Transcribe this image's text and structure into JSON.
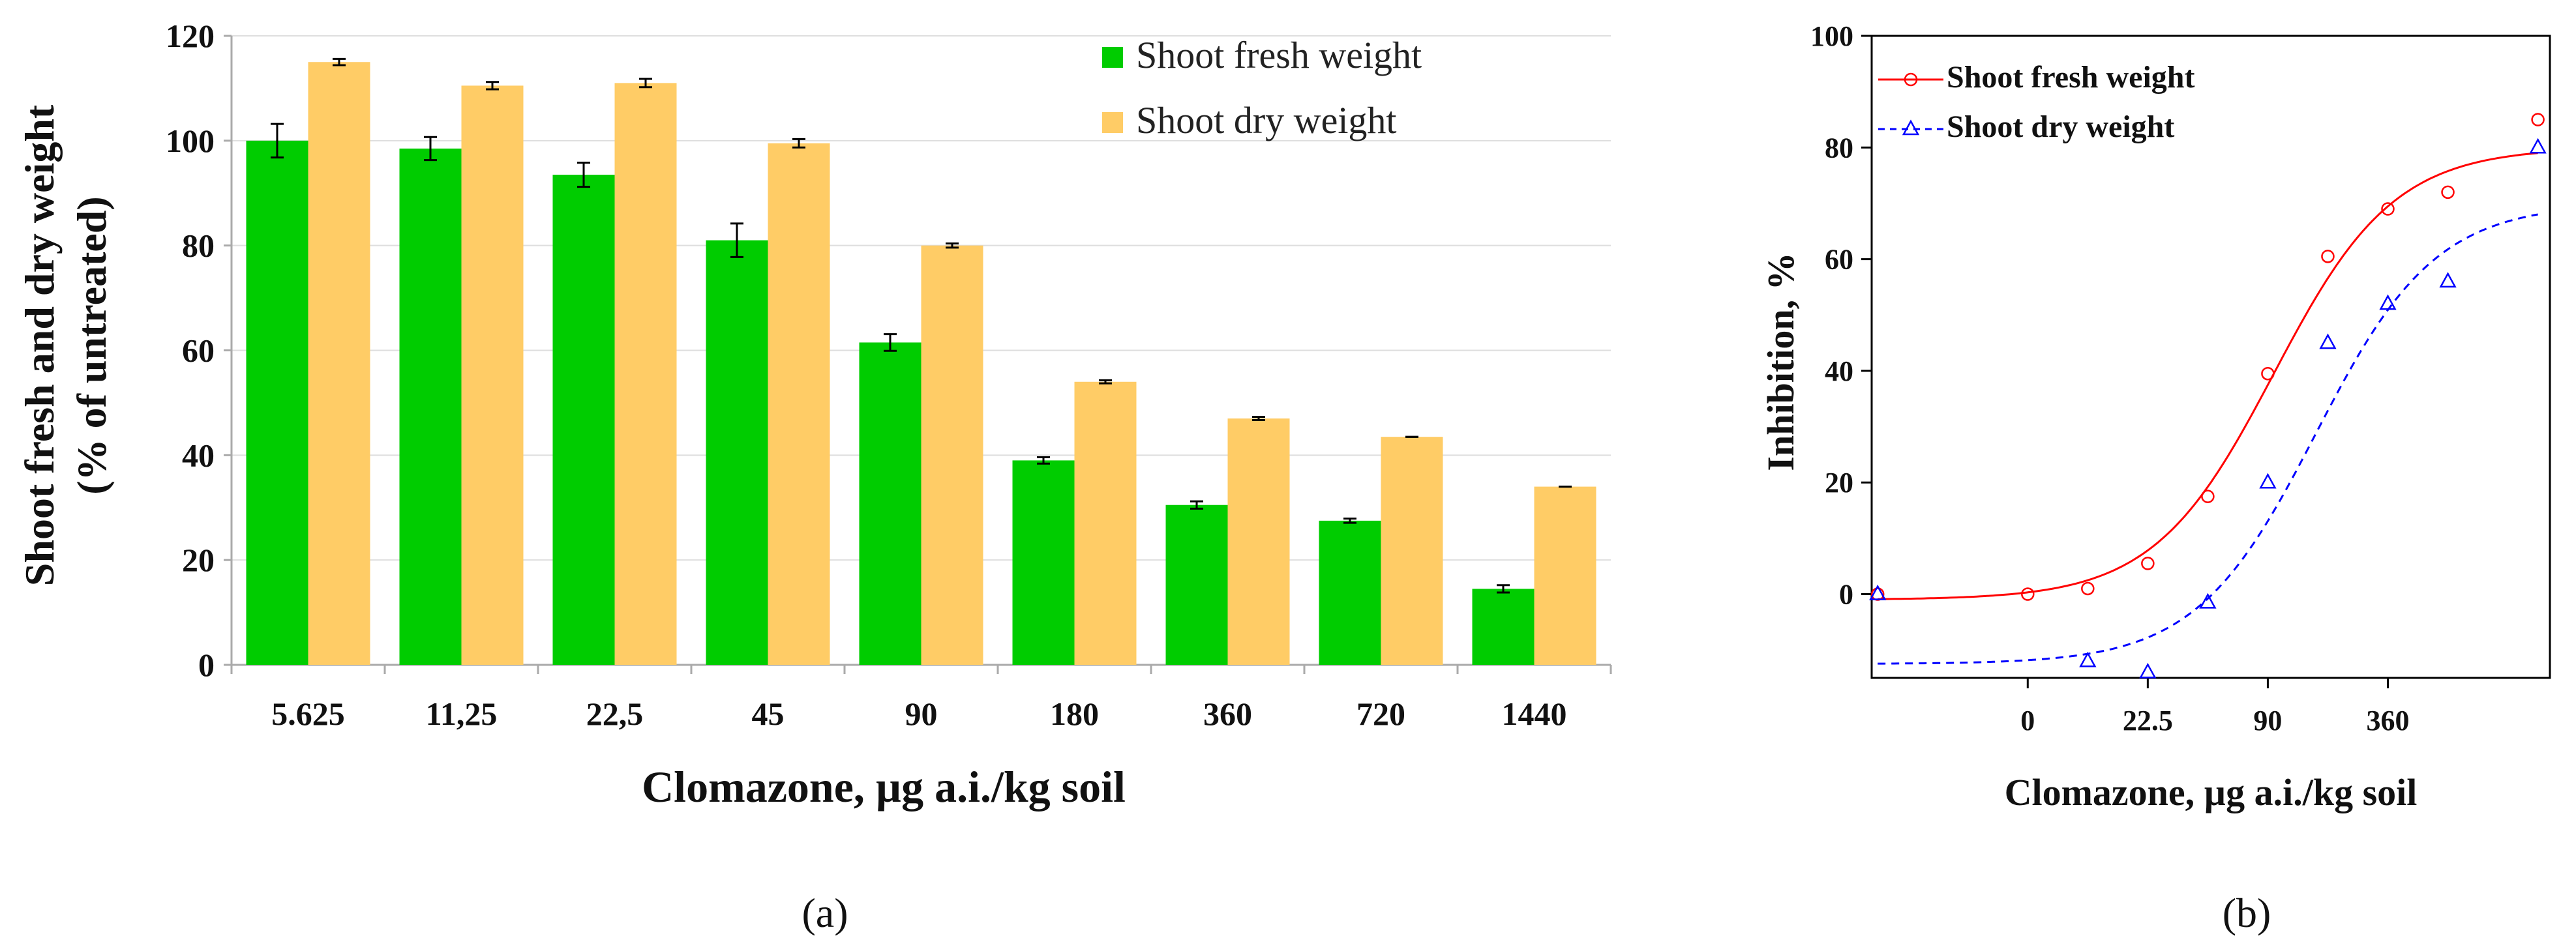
{
  "chart_data": [
    {
      "type": "bar",
      "panel_label": "(a)",
      "xlabel": "Clomazone, µg a.i./kg soil",
      "ylabel_line1": "Shoot fresh  and dry weight",
      "ylabel_line2": "(% of untreated)",
      "categories": [
        "5.625",
        "11,25",
        "22,5",
        "45",
        "90",
        "180",
        "360",
        "720",
        "1440"
      ],
      "ylim": [
        0,
        120
      ],
      "yticks": [
        0,
        20,
        40,
        60,
        80,
        100,
        120
      ],
      "gridlines": true,
      "legend_position": "top-right",
      "series": [
        {
          "name": "Shoot fresh weight",
          "color": "#00cc00",
          "values": [
            100,
            98.5,
            93.5,
            81,
            61.5,
            39,
            30.5,
            27.5,
            14.5
          ],
          "errors": [
            3.2,
            2.2,
            2.3,
            3.2,
            1.6,
            0.6,
            0.7,
            0.4,
            0.7
          ]
        },
        {
          "name": "Shoot dry weight",
          "color": "#ffcc66",
          "values": [
            115,
            110.5,
            111,
            99.5,
            80,
            54,
            47,
            43.5,
            34
          ],
          "errors": [
            0.6,
            0.7,
            0.8,
            0.8,
            0.4,
            0.3,
            0.3,
            0,
            0
          ]
        }
      ]
    },
    {
      "type": "scatter",
      "panel_label": "(b)",
      "xlabel": "Clomazone, µg a.i./kg soil",
      "ylabel": "Inhibition, %",
      "xscale": "log2 dose index (0 = 22.5/4 µg)",
      "xlim": [
        -2.6,
        8.7
      ],
      "ylim": [
        -15,
        100
      ],
      "yticks": [
        0,
        20,
        40,
        60,
        80,
        100
      ],
      "xtick_labels": [
        {
          "x": 0,
          "label": "0"
        },
        {
          "x": 2,
          "label": "22.5"
        },
        {
          "x": 4,
          "label": "90"
        },
        {
          "x": 6,
          "label": "360"
        }
      ],
      "legend_position": "top-left",
      "series": [
        {
          "name": "Shoot fresh weight",
          "color": "#ff0000",
          "marker": "circle",
          "line": "solid",
          "points": [
            [
              -2.5,
              0
            ],
            [
              0,
              0
            ],
            [
              1,
              1
            ],
            [
              2,
              5.5
            ],
            [
              3,
              17.5
            ],
            [
              4,
              39.5
            ],
            [
              5,
              60.5
            ],
            [
              6,
              69
            ],
            [
              7,
              72
            ],
            [
              8.5,
              85
            ]
          ],
          "fit": {
            "bottom": -1,
            "top": 80,
            "x50": 4.1,
            "slope": 1.0
          }
        },
        {
          "name": "Shoot dry weight",
          "color": "#0000ff",
          "marker": "triangle",
          "line": "dashed",
          "points": [
            [
              -2.5,
              0
            ],
            [
              1,
              -12
            ],
            [
              2,
              -14
            ],
            [
              3,
              -1.5
            ],
            [
              4,
              20
            ],
            [
              5,
              45
            ],
            [
              6,
              52
            ],
            [
              7,
              56
            ],
            [
              8.5,
              80
            ]
          ],
          "fit": {
            "bottom": -12.5,
            "top": 70,
            "x50": 4.8,
            "slope": 1.0
          }
        }
      ]
    }
  ]
}
